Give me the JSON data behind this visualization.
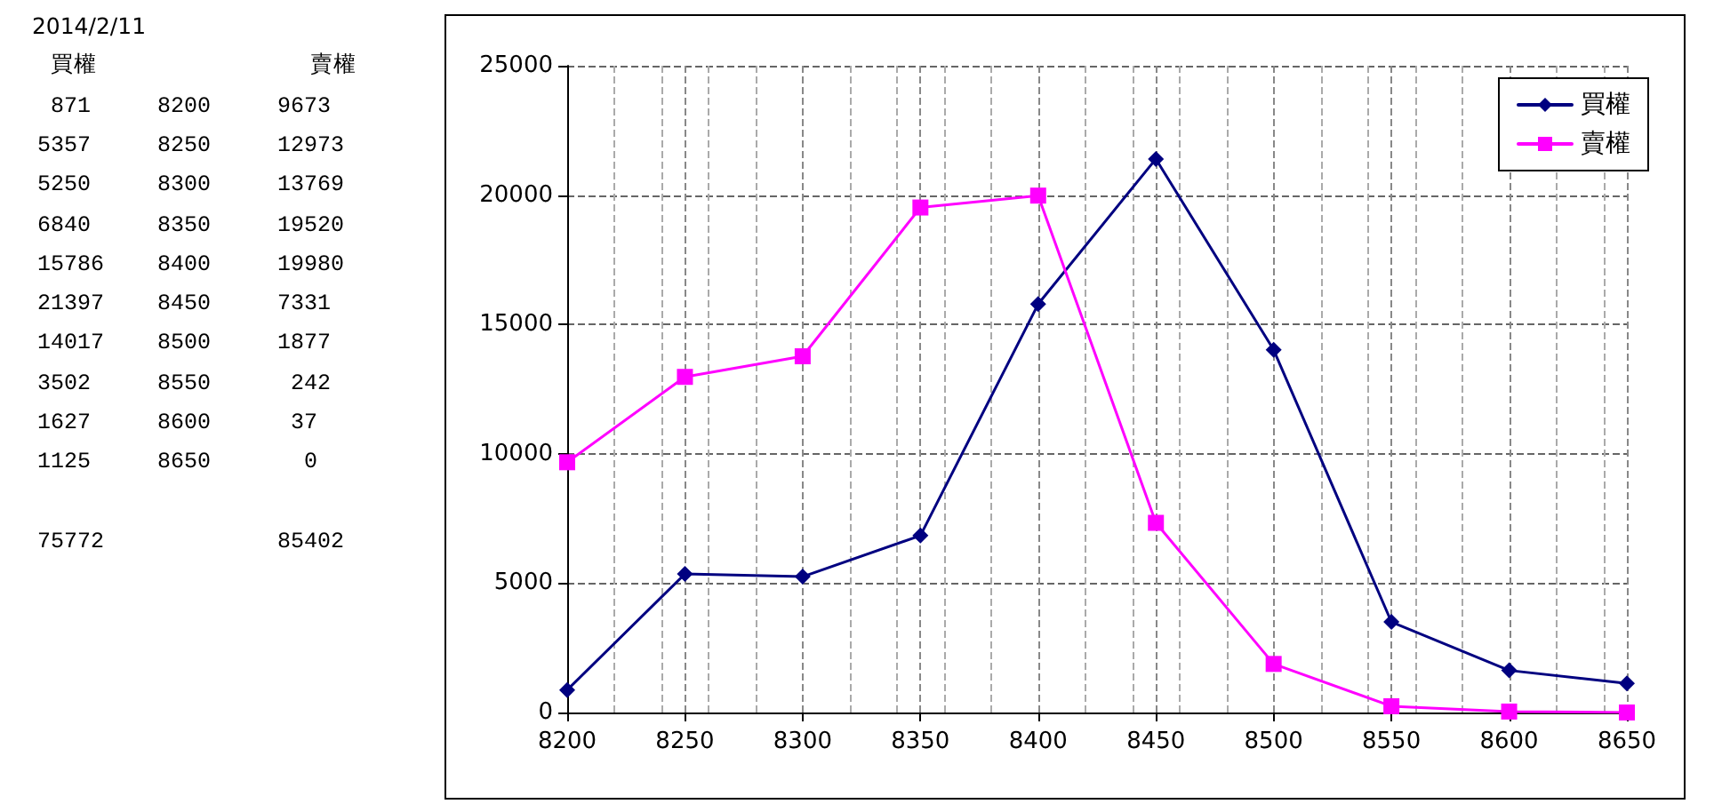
{
  "chart_data": [
    {
      "type": "other",
      "title": "2014/2/11",
      "annotations": [
        "買權 賣權",
        "871 8200 9673",
        "5357 8250 12973",
        "5250 8300 13769",
        "6840 8350 19520",
        "15786 8400 19980",
        "21397 8450 7331",
        "14017 8500 1877",
        "3502 8550 242",
        "1627 8600 37",
        "1125 8650 0",
        "75772 85402"
      ]
    },
    {
      "type": "line",
      "x": [
        8200,
        8250,
        8300,
        8350,
        8400,
        8450,
        8500,
        8550,
        8600,
        8650
      ],
      "series": [
        {
          "name": "買權",
          "color": "#000080",
          "marker": "diamond",
          "values": [
            871,
            5357,
            5250,
            6840,
            15786,
            21397,
            14017,
            3502,
            1627,
            1125
          ]
        },
        {
          "name": "賣權",
          "color": "#ff00ff",
          "marker": "square",
          "values": [
            9673,
            12973,
            13769,
            19520,
            19980,
            7331,
            1877,
            242,
            37,
            0
          ]
        }
      ],
      "xlim": [
        8200,
        8650
      ],
      "xticks": [
        8200,
        8250,
        8300,
        8350,
        8400,
        8450,
        8500,
        8550,
        8600,
        8650
      ],
      "ylim": [
        0,
        25000
      ],
      "yticks": [
        0,
        5000,
        10000,
        15000,
        20000,
        25000
      ],
      "grid": true,
      "legend": "top right",
      "line_style": "solid"
    }
  ]
}
